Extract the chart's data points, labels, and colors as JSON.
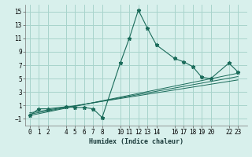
{
  "xlabel": "Humidex (Indice chaleur)",
  "bg_color": "#d8f0ec",
  "grid_color": "#a8d4cc",
  "line_color": "#1a6b5a",
  "series_main": {
    "x": [
      0,
      1,
      2,
      4,
      5,
      6,
      7,
      8,
      10,
      11,
      12,
      13,
      14,
      16,
      17,
      18,
      19,
      20,
      22,
      23
    ],
    "y": [
      -0.5,
      0.5,
      0.5,
      0.8,
      0.7,
      0.7,
      0.5,
      -0.8,
      7.3,
      11.0,
      15.2,
      12.5,
      10.0,
      8.0,
      7.5,
      6.8,
      5.2,
      5.0,
      7.3,
      6.0
    ]
  },
  "series_lines": [
    {
      "x": [
        0,
        23
      ],
      "y": [
        -0.5,
        5.8
      ]
    },
    {
      "x": [
        0,
        23
      ],
      "y": [
        -0.3,
        5.3
      ]
    },
    {
      "x": [
        0,
        23
      ],
      "y": [
        -0.1,
        4.8
      ]
    }
  ],
  "xlim": [
    -0.5,
    24.0
  ],
  "ylim": [
    -2.0,
    16.0
  ],
  "yticks": [
    -1,
    1,
    3,
    5,
    7,
    9,
    11,
    13,
    15
  ],
  "xticks": [
    0,
    1,
    2,
    4,
    5,
    6,
    7,
    8,
    10,
    11,
    12,
    13,
    14,
    16,
    17,
    18,
    19,
    20,
    22,
    23
  ]
}
